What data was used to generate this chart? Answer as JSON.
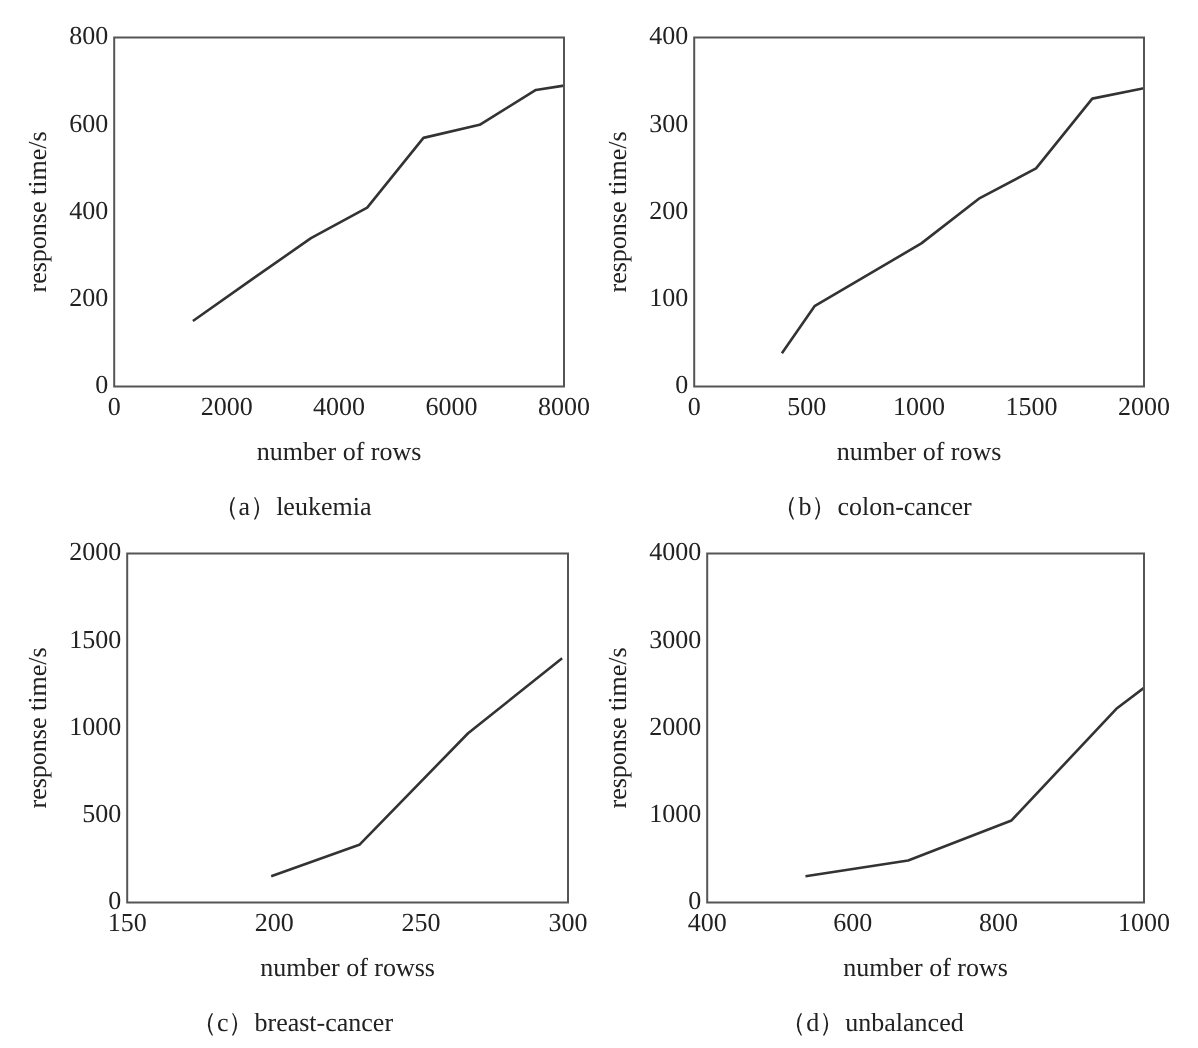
{
  "chart_data": [
    {
      "type": "line",
      "title": "（a）leukemia",
      "xlabel": "number of rows",
      "ylabel": "response time/s",
      "x": [
        1400,
        2500,
        3500,
        4500,
        5500,
        6500,
        7500,
        8000
      ],
      "values": [
        150,
        250,
        340,
        410,
        570,
        600,
        680,
        690
      ],
      "color": "#333333",
      "marker": "none",
      "xlim": [
        0,
        8000
      ],
      "ylim": [
        0,
        800
      ],
      "xticks": [
        0,
        2000,
        4000,
        6000,
        8000
      ],
      "yticks": [
        0,
        200,
        400,
        600,
        800
      ]
    },
    {
      "type": "line",
      "title": "（b）colon-cancer",
      "xlabel": "number of rows",
      "ylabel": "response time/s",
      "x": [
        390,
        535,
        1010,
        1270,
        1520,
        1770,
        2000
      ],
      "values": [
        38,
        92,
        164,
        216,
        250,
        330,
        342
      ],
      "color": "#333333",
      "marker": "none",
      "xlim": [
        0,
        2000
      ],
      "ylim": [
        0,
        400
      ],
      "xticks": [
        0,
        500,
        1000,
        1500,
        2000
      ],
      "yticks": [
        0,
        100,
        200,
        300,
        400
      ]
    },
    {
      "type": "line",
      "title": "（c）breast-cancer",
      "xlabel": "number of rowss",
      "ylabel": "response time/s",
      "x": [
        199,
        229,
        266,
        298
      ],
      "values": [
        150,
        330,
        970,
        1400
      ],
      "color": "#333333",
      "marker": "none",
      "xlim": [
        150,
        300
      ],
      "ylim": [
        0,
        2000
      ],
      "xticks": [
        150,
        200,
        250,
        300
      ],
      "yticks": [
        0,
        500,
        1000,
        1500,
        2000
      ]
    },
    {
      "type": "line",
      "title": "（d）unbalanced",
      "xlabel": "number of rows",
      "ylabel": "response time/s",
      "x": [
        535,
        676,
        818,
        962,
        1000
      ],
      "values": [
        300,
        480,
        940,
        2220,
        2460
      ],
      "color": "#333333",
      "marker": "none",
      "xlim": [
        400,
        1000
      ],
      "ylim": [
        0,
        4000
      ],
      "xticks": [
        400,
        600,
        800,
        1000
      ],
      "yticks": [
        0,
        1000,
        2000,
        3000,
        4000
      ]
    }
  ]
}
